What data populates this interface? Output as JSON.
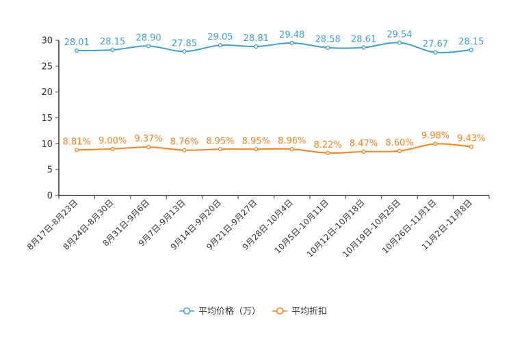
{
  "chart_data": {
    "type": "line",
    "categories": [
      "8月17日-8月23日",
      "8月24日-8月30日",
      "8月31日-9月6日",
      "9月7日-9月13日",
      "9月14日-9月20日",
      "9月21日-9月27日",
      "9月28日-10月4日",
      "10月5日-10月11日",
      "10月12日-10月18日",
      "10月19日-10月25日",
      "10月26日-11月1日",
      "11月2日-11月8日"
    ],
    "ylim": [
      0,
      30
    ],
    "yticks": [
      0,
      5,
      10,
      15,
      20,
      25,
      30
    ],
    "series": [
      {
        "name": "平均价格（万）",
        "color": "#3d9fd1",
        "values": [
          28.01,
          28.15,
          28.9,
          27.85,
          29.05,
          28.81,
          29.48,
          28.58,
          28.61,
          29.54,
          27.67,
          28.15
        ],
        "labels": [
          "28.01",
          "28.15",
          "28.90",
          "27.85",
          "29.05",
          "28.81",
          "29.48",
          "28.58",
          "28.61",
          "29.54",
          "27.67",
          "28.15"
        ]
      },
      {
        "name": "平均折扣",
        "color": "#f58220",
        "values": [
          8.81,
          9.0,
          9.37,
          8.76,
          8.95,
          8.95,
          8.96,
          8.22,
          8.47,
          8.6,
          9.98,
          9.43
        ],
        "labels": [
          "8.81%",
          "9.00%",
          "9.37%",
          "8.76%",
          "8.95%",
          "8.95%",
          "8.96%",
          "8.22%",
          "8.47%",
          "8.60%",
          "9.98%",
          "9.43%"
        ]
      }
    ],
    "legend_position": "bottom-center"
  }
}
